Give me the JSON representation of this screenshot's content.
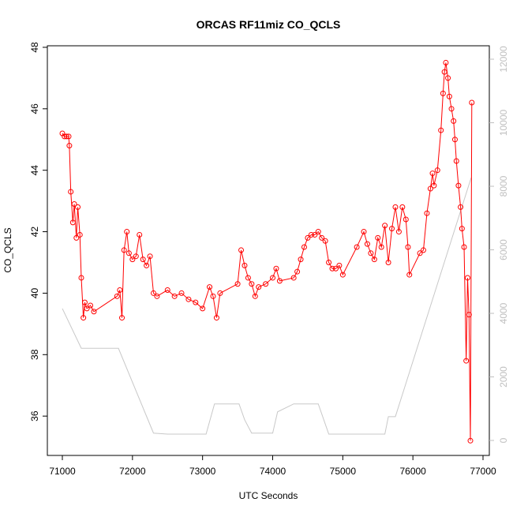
{
  "chart_data": {
    "type": "line",
    "title": "ORCAS RF11miz CO_QCLS",
    "x_label": "UTC Seconds",
    "y_label": "CO_QCLS",
    "xlim": [
      70786,
      77090
    ],
    "ylim": [
      34.72,
      48.05
    ],
    "y2lim": [
      -472,
      12422
    ],
    "xticks": [
      71000,
      72000,
      73000,
      74000,
      75000,
      76000,
      77000
    ],
    "yticks": [
      36,
      38,
      40,
      42,
      44,
      46,
      48
    ],
    "y2ticks": [
      0,
      2000,
      4000,
      6000,
      8000,
      10000,
      12000
    ],
    "y2_color": "#bfbfbf",
    "series": [
      {
        "name": "CO_QCLS",
        "color": "#ff0000",
        "markers": true,
        "x": [
          71000,
          71030,
          71060,
          71090,
          71100,
          71120,
          71150,
          71170,
          71200,
          71220,
          71250,
          71270,
          71300,
          71320,
          71350,
          71400,
          71450,
          71780,
          71820,
          71850,
          71880,
          71920,
          71950,
          72000,
          72050,
          72100,
          72150,
          72200,
          72250,
          72300,
          72350,
          72500,
          72600,
          72700,
          72800,
          72900,
          73000,
          73100,
          73150,
          73200,
          73250,
          73500,
          73550,
          73600,
          73650,
          73700,
          73750,
          73800,
          73900,
          74000,
          74050,
          74100,
          74300,
          74350,
          74400,
          74450,
          74500,
          74550,
          74600,
          74650,
          74700,
          74750,
          74800,
          74850,
          74900,
          74950,
          75000,
          75200,
          75300,
          75350,
          75400,
          75450,
          75500,
          75550,
          75600,
          75650,
          75700,
          75750,
          75800,
          75850,
          75900,
          75930,
          75950,
          76100,
          76150,
          76200,
          76250,
          76280,
          76300,
          76350,
          76400,
          76430,
          76450,
          76470,
          76500,
          76520,
          76550,
          76580,
          76600,
          76620,
          76650,
          76680,
          76700,
          76730,
          76760,
          76780,
          76800,
          76820,
          76840
        ],
        "values": [
          45.2,
          45.1,
          45.1,
          45.1,
          44.8,
          43.3,
          42.3,
          42.9,
          41.8,
          42.8,
          41.9,
          40.5,
          39.2,
          39.7,
          39.5,
          39.6,
          39.4,
          39.9,
          40.1,
          39.2,
          41.4,
          42.0,
          41.3,
          41.1,
          41.2,
          41.9,
          41.1,
          40.9,
          41.2,
          40.0,
          39.9,
          40.1,
          39.9,
          40.0,
          39.8,
          39.7,
          39.5,
          40.2,
          39.9,
          39.2,
          40.0,
          40.3,
          41.4,
          40.9,
          40.5,
          40.3,
          39.9,
          40.2,
          40.3,
          40.5,
          40.8,
          40.4,
          40.5,
          40.7,
          41.1,
          41.5,
          41.8,
          41.9,
          41.9,
          42.0,
          41.8,
          41.7,
          41.0,
          40.8,
          40.8,
          40.9,
          40.6,
          41.5,
          42.0,
          41.6,
          41.3,
          41.1,
          41.8,
          41.5,
          42.2,
          41.0,
          42.1,
          42.8,
          42.0,
          42.8,
          42.4,
          41.5,
          40.6,
          41.3,
          41.4,
          42.6,
          43.4,
          43.9,
          43.5,
          44.0,
          45.3,
          46.5,
          47.2,
          47.5,
          47.0,
          46.4,
          46.0,
          45.6,
          45.0,
          44.3,
          43.5,
          42.8,
          42.1,
          41.5,
          37.8,
          40.5,
          39.3,
          35.2,
          46.2
        ]
      },
      {
        "color": "#c8c8c8",
        "axis": "y2",
        "markers": false,
        "x": [
          71000,
          71270,
          71800,
          72300,
          72500,
          73050,
          73170,
          73520,
          73600,
          73700,
          74000,
          74070,
          74300,
          74650,
          74800,
          75600,
          75650,
          75750,
          76831
        ],
        "values": [
          4150,
          2900,
          2900,
          230,
          200,
          200,
          1150,
          1150,
          650,
          230,
          230,
          900,
          1150,
          1150,
          200,
          200,
          750,
          750,
          8270
        ]
      }
    ]
  }
}
